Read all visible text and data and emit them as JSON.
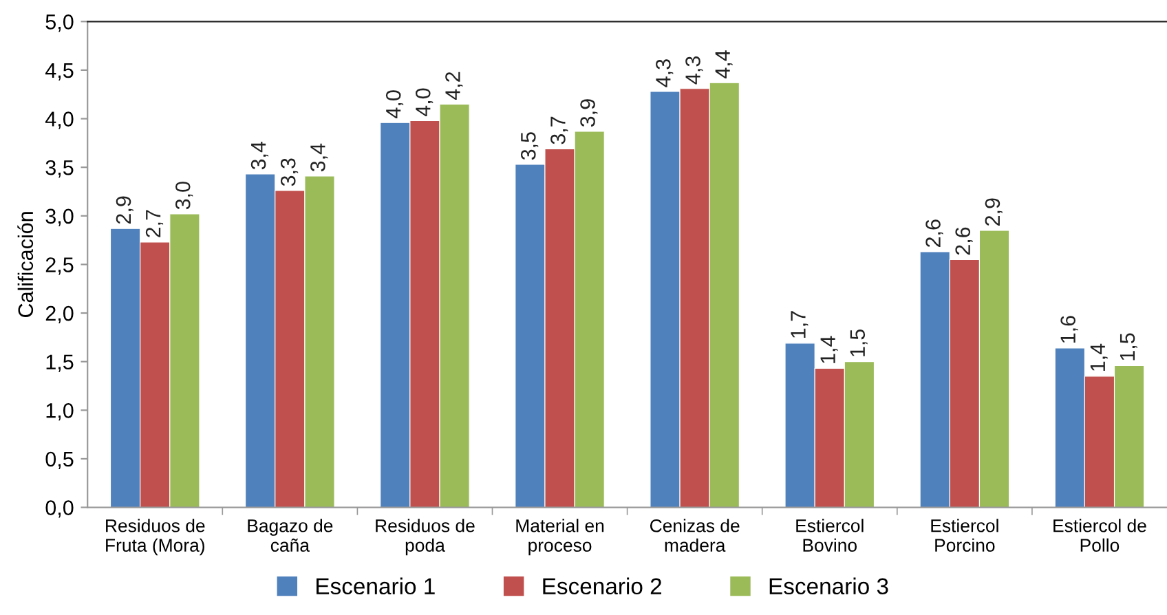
{
  "chart_data": {
    "type": "bar",
    "ylabel": "Calificación",
    "categories": [
      "Residuos de\nFruta (Mora)",
      "Bagazo de\ncaña",
      "Residuos de\npoda",
      "Material en\nproceso",
      "Cenizas de\nmadera",
      "Estiercol\nBovino",
      "Estiercol\nPorcino",
      "Estiercol de\nPollo"
    ],
    "series": [
      {
        "name": "Escenario 1",
        "color": "#4f81bd",
        "values": [
          2.87,
          3.43,
          3.96,
          3.53,
          4.28,
          1.69,
          2.63,
          1.64
        ],
        "value_labels": [
          "2,9",
          "3,4",
          "4,0",
          "3,5",
          "4,3",
          "1,7",
          "2,6",
          "1,6"
        ]
      },
      {
        "name": "Escenario 2",
        "color": "#c0504d",
        "values": [
          2.73,
          3.26,
          3.98,
          3.69,
          4.31,
          1.43,
          2.55,
          1.35
        ],
        "value_labels": [
          "2,7",
          "3,3",
          "4,0",
          "3,7",
          "4,3",
          "1,4",
          "2,6",
          "1,4"
        ]
      },
      {
        "name": "Escenario 3",
        "color": "#9bbb59",
        "values": [
          3.02,
          3.41,
          4.15,
          3.87,
          4.37,
          1.5,
          2.85,
          1.46
        ],
        "value_labels": [
          "3,0",
          "3,4",
          "4,2",
          "3,9",
          "4,4",
          "1,5",
          "2,9",
          "1,5"
        ]
      }
    ],
    "ylim": [
      0,
      5
    ],
    "yticks": [
      {
        "value": 0,
        "label": "0,0"
      },
      {
        "value": 0.5,
        "label": "0,5"
      },
      {
        "value": 1,
        "label": "1,0"
      },
      {
        "value": 1.5,
        "label": "1,5"
      },
      {
        "value": 2,
        "label": "2,0"
      },
      {
        "value": 2.5,
        "label": "2,5"
      },
      {
        "value": 3,
        "label": "3,0"
      },
      {
        "value": 3.5,
        "label": "3,5"
      },
      {
        "value": 4,
        "label": "4,0"
      },
      {
        "value": 4.5,
        "label": "4,5"
      },
      {
        "value": 5,
        "label": "5,0"
      }
    ],
    "grid": false,
    "legend": "bottom"
  }
}
